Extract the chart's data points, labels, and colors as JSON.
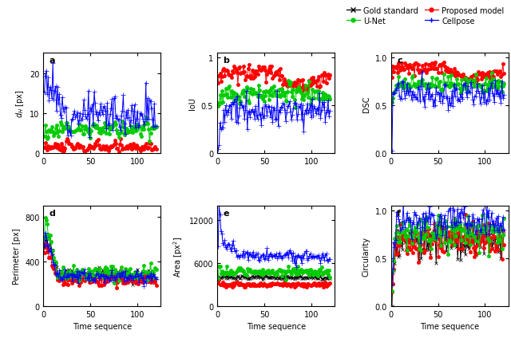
{
  "n_points": 120,
  "colors": {
    "gold": "#000000",
    "proposed": "#ff0000",
    "unet": "#00cc00",
    "cellpose": "#0000ff"
  },
  "legend": {
    "gold_label": "Gold standard",
    "proposed_label": "Proposed model",
    "unet_label": "U-Net",
    "cellpose_label": "Cellpose"
  },
  "subplot_labels": [
    "a",
    "b",
    "c",
    "d",
    "e",
    "f"
  ],
  "ylabels": [
    "$d_H$ [px]",
    "IoU",
    "DSC",
    "Perimeter [px]",
    "Area [px$^2$]",
    "Circularity"
  ],
  "xlabel": "Time sequence",
  "axis_fontsize": 7,
  "tick_fontsize": 7,
  "bg_color": "#f5f5f0"
}
